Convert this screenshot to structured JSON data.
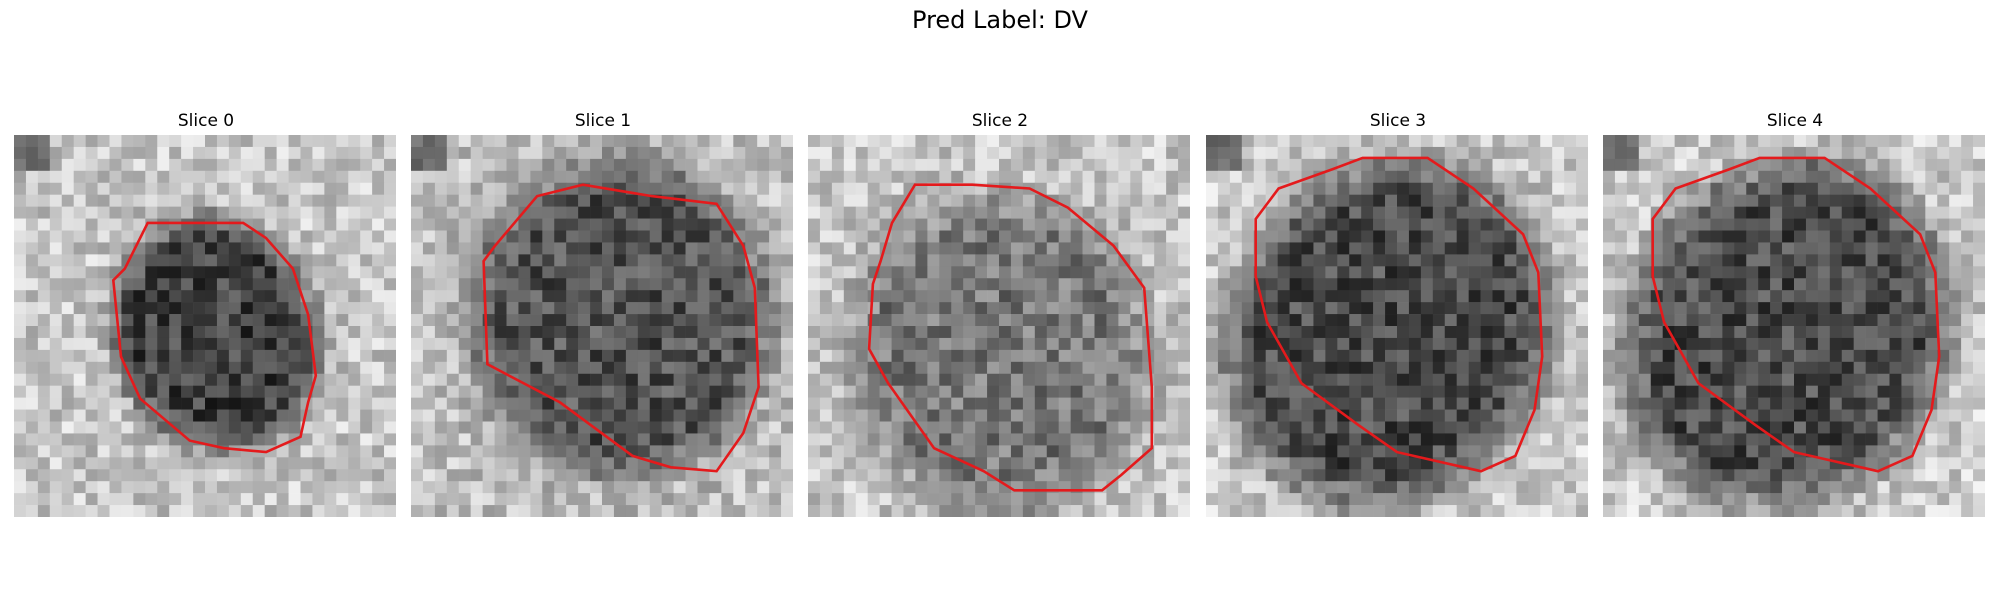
{
  "title": "Pred Label: DV",
  "panels": [
    {
      "label": "Slice 0"
    },
    {
      "label": "Slice 1"
    },
    {
      "label": "Slice 2"
    },
    {
      "label": "Slice 3"
    },
    {
      "label": "Slice 4"
    }
  ],
  "contour_color": "#e41a1c"
}
